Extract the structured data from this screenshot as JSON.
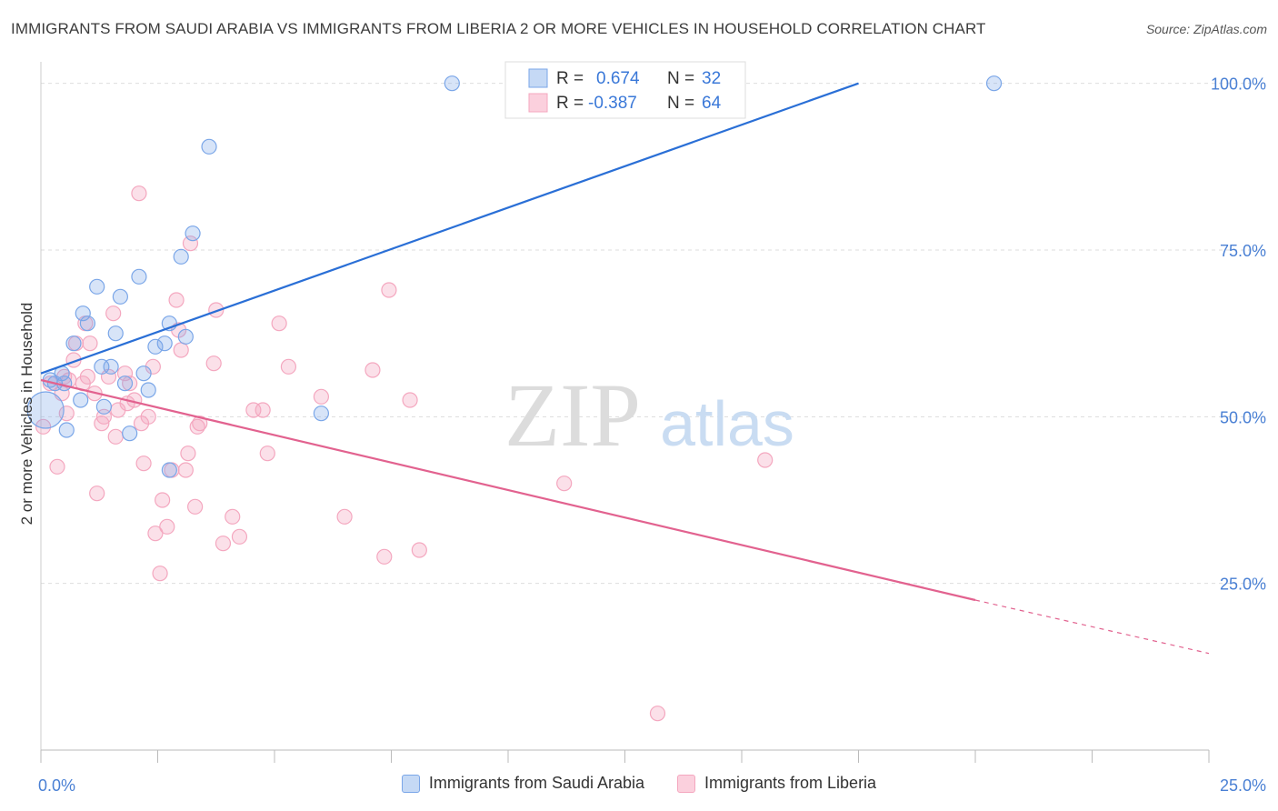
{
  "title": "IMMIGRANTS FROM SAUDI ARABIA VS IMMIGRANTS FROM LIBERIA 2 OR MORE VEHICLES IN HOUSEHOLD CORRELATION CHART",
  "source": "Source: ZipAtlas.com",
  "watermark": {
    "zip": "ZIP",
    "atlas": "atlas"
  },
  "chart_data": {
    "type": "scatter",
    "ylabel": "2 or more Vehicles in Household",
    "xlim": [
      0,
      25
    ],
    "ylim": [
      0,
      105
    ],
    "x_tick_labels": [
      "0.0%",
      "25.0%"
    ],
    "y_tick_values": [
      25,
      50,
      75,
      100
    ],
    "y_tick_labels": [
      "25.0%",
      "50.0%",
      "75.0%",
      "100.0%"
    ],
    "grid": true,
    "legend_position": "top-center",
    "series": [
      {
        "name": "Immigrants from Saudi Arabia",
        "color": "#7aa6e8",
        "line_color": "#2a6fd6",
        "R": "0.674",
        "N": "32",
        "trend": {
          "x": [
            0,
            17.5
          ],
          "y": [
            56.5,
            100
          ]
        },
        "points": [
          [
            0.2,
            55.5
          ],
          [
            0.3,
            55
          ],
          [
            0.45,
            56.5
          ],
          [
            0.5,
            55
          ],
          [
            0.55,
            48
          ],
          [
            0.7,
            61
          ],
          [
            0.85,
            52.5
          ],
          [
            0.9,
            65.5
          ],
          [
            1.0,
            64
          ],
          [
            1.2,
            69.5
          ],
          [
            1.3,
            57.5
          ],
          [
            1.35,
            51.5
          ],
          [
            1.5,
            57.5
          ],
          [
            1.6,
            62.5
          ],
          [
            1.7,
            68
          ],
          [
            1.8,
            55
          ],
          [
            1.9,
            47.5
          ],
          [
            2.1,
            71
          ],
          [
            2.2,
            56.5
          ],
          [
            2.3,
            54
          ],
          [
            2.45,
            60.5
          ],
          [
            2.65,
            61
          ],
          [
            2.75,
            42
          ],
          [
            2.75,
            64
          ],
          [
            3.0,
            74
          ],
          [
            3.1,
            62
          ],
          [
            3.25,
            77.5
          ],
          [
            3.6,
            90.5
          ],
          [
            6.0,
            50.5
          ],
          [
            8.8,
            100
          ],
          [
            20.4,
            100
          ],
          [
            0.1,
            51
          ]
        ]
      },
      {
        "name": "Immigrants from Liberia",
        "color": "#f4a7bf",
        "line_color": "#e2628f",
        "R": "-0.387",
        "N": "64",
        "trend": {
          "x": [
            0,
            20
          ],
          "y": [
            55.5,
            22.5
          ]
        },
        "trend_dashed": {
          "x": [
            20,
            25
          ],
          "y": [
            22.5,
            14.5
          ]
        },
        "points": [
          [
            0.05,
            48.5
          ],
          [
            0.2,
            55
          ],
          [
            0.35,
            42.5
          ],
          [
            0.45,
            53.5
          ],
          [
            0.6,
            55.5
          ],
          [
            0.7,
            58.5
          ],
          [
            0.75,
            61
          ],
          [
            0.95,
            64
          ],
          [
            1.0,
            56
          ],
          [
            1.05,
            61
          ],
          [
            1.2,
            38.5
          ],
          [
            1.3,
            49
          ],
          [
            1.35,
            50
          ],
          [
            1.45,
            56
          ],
          [
            1.55,
            65.5
          ],
          [
            1.65,
            51
          ],
          [
            1.8,
            56.5
          ],
          [
            1.85,
            52
          ],
          [
            1.9,
            55
          ],
          [
            2.0,
            52.5
          ],
          [
            2.1,
            83.5
          ],
          [
            2.15,
            49
          ],
          [
            2.2,
            43
          ],
          [
            2.3,
            50
          ],
          [
            2.4,
            57.5
          ],
          [
            2.45,
            32.5
          ],
          [
            2.55,
            26.5
          ],
          [
            2.6,
            37.5
          ],
          [
            2.7,
            33.5
          ],
          [
            2.9,
            67.5
          ],
          [
            2.95,
            63
          ],
          [
            3.0,
            60
          ],
          [
            3.1,
            42
          ],
          [
            3.15,
            44.5
          ],
          [
            3.2,
            76
          ],
          [
            3.3,
            36.5
          ],
          [
            3.35,
            48.5
          ],
          [
            3.4,
            49
          ],
          [
            3.7,
            58
          ],
          [
            3.75,
            66
          ],
          [
            3.9,
            31
          ],
          [
            4.1,
            35
          ],
          [
            4.25,
            32
          ],
          [
            4.55,
            51
          ],
          [
            4.75,
            51
          ],
          [
            4.85,
            44.5
          ],
          [
            5.1,
            64
          ],
          [
            5.3,
            57.5
          ],
          [
            6.0,
            53
          ],
          [
            6.5,
            35
          ],
          [
            7.1,
            57
          ],
          [
            7.35,
            29
          ],
          [
            7.45,
            69
          ],
          [
            7.9,
            52.5
          ],
          [
            8.1,
            30
          ],
          [
            11.2,
            40
          ],
          [
            13.2,
            5.5
          ],
          [
            15.5,
            43.5
          ],
          [
            0.5,
            56
          ],
          [
            0.9,
            55
          ],
          [
            1.15,
            53.5
          ],
          [
            2.8,
            42
          ],
          [
            1.6,
            47
          ],
          [
            0.55,
            50.5
          ]
        ]
      }
    ]
  },
  "legend": {
    "r_label": "R =",
    "n_label": "N =",
    "items": [
      {
        "r_value": "0.674",
        "n_value": "32"
      },
      {
        "r_value": "-0.387",
        "n_value": "64"
      }
    ]
  },
  "bottom_legend": [
    {
      "label": "Immigrants from Saudi Arabia"
    },
    {
      "label": "Immigrants from Liberia"
    }
  ]
}
